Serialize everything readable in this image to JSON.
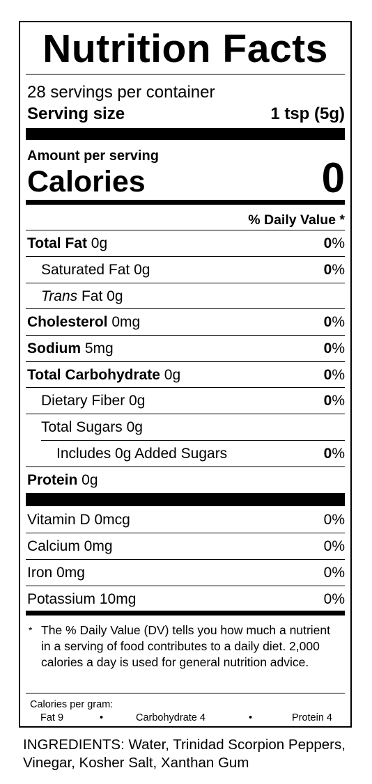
{
  "label": {
    "title": "Nutrition Facts",
    "servings_per_container": "28 servings per container",
    "serving_size_label": "Serving size",
    "serving_size_value": "1 tsp (5g)",
    "amount_per_serving": "Amount per serving",
    "calories_label": "Calories",
    "calories_value": "0",
    "daily_value_header": "% Daily Value *",
    "rows": [
      {
        "bold": "Total Fat",
        "rest": " 0g",
        "dv_num": "0",
        "dv_pct": "%"
      },
      {
        "rest": "Saturated Fat 0g",
        "dv_num": "0",
        "dv_pct": "%"
      },
      {
        "italic": "Trans",
        "rest": " Fat 0g"
      },
      {
        "bold": "Cholesterol",
        "rest": " 0mg",
        "dv_num": "0",
        "dv_pct": "%"
      },
      {
        "bold": "Sodium",
        "rest": " 5mg",
        "dv_num": "0",
        "dv_pct": "%"
      },
      {
        "bold": "Total Carbohydrate",
        "rest": " 0g",
        "dv_num": "0",
        "dv_pct": "%"
      },
      {
        "rest": "Dietary Fiber 0g",
        "dv_num": "0",
        "dv_pct": "%"
      },
      {
        "rest": "Total Sugars 0g"
      },
      {
        "rest": "Includes 0g Added Sugars",
        "dv_num": "0",
        "dv_pct": "%"
      },
      {
        "bold": "Protein",
        "rest": " 0g"
      }
    ],
    "vitamins": [
      {
        "name": "Vitamin D 0mcg",
        "dv": "0%"
      },
      {
        "name": "Calcium 0mg",
        "dv": "0%"
      },
      {
        "name": "Iron 0mg",
        "dv": "0%"
      },
      {
        "name": "Potassium 10mg",
        "dv": "0%"
      }
    ],
    "footnote_star": "*",
    "footnote": "The % Daily Value (DV) tells you how much a nutrient in a serving of food contributes to a daily diet. 2,000 calories a day is used for general nutrition advice.",
    "calories_per_gram": {
      "heading": "Calories per gram:",
      "fat": "Fat 9",
      "carbohydrate": "Carbohydrate 4",
      "protein": "Protein 4",
      "separator": "•"
    }
  },
  "ingredients": "INGREDIENTS: Water, Trinidad Scorpion Peppers, Vinegar, Kosher Salt, Xanthan Gum"
}
